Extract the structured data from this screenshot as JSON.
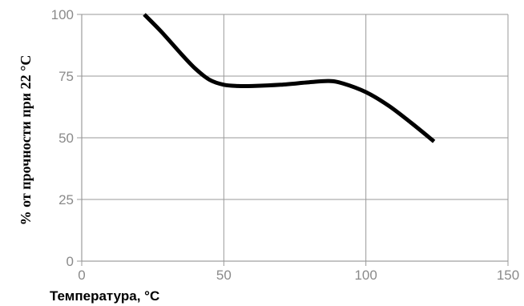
{
  "chart_data": {
    "type": "line",
    "title": "",
    "xlabel": "Температура, °C",
    "ylabel": "% от прочности при 22 °C",
    "xlim": [
      0,
      150
    ],
    "ylim": [
      0,
      100
    ],
    "x_ticks": [
      "0",
      "50",
      "100",
      "150"
    ],
    "y_ticks": [
      "0",
      "25",
      "50",
      "75",
      "100"
    ],
    "x_tick_values": [
      0,
      50,
      100,
      150
    ],
    "y_tick_values": [
      0,
      25,
      50,
      75,
      100
    ],
    "grid": true,
    "legend": "none",
    "series": [
      {
        "color": "#000000",
        "points": [
          [
            22,
            100
          ],
          [
            28,
            93
          ],
          [
            35,
            84
          ],
          [
            40,
            78
          ],
          [
            45,
            73.5
          ],
          [
            50,
            71.5
          ],
          [
            55,
            71
          ],
          [
            60,
            71
          ],
          [
            70,
            71.5
          ],
          [
            80,
            72.5
          ],
          [
            87,
            73
          ],
          [
            92,
            72
          ],
          [
            100,
            68.5
          ],
          [
            108,
            63
          ],
          [
            116,
            56
          ],
          [
            124,
            48.5
          ]
        ]
      }
    ]
  }
}
